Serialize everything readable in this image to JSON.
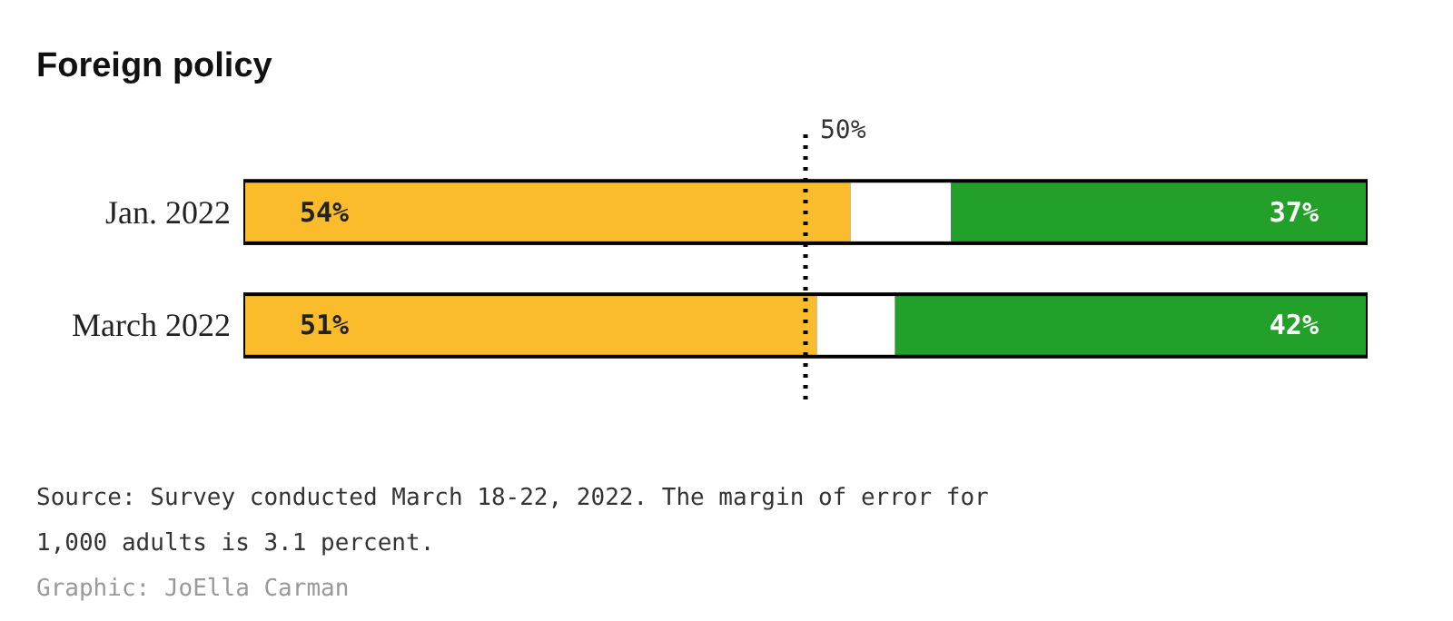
{
  "chart_data": {
    "type": "bar",
    "orientation": "horizontal",
    "stacked": true,
    "title": "Foreign policy",
    "categories": [
      "Jan. 2022",
      "March 2022"
    ],
    "series": [
      {
        "color": "#fbbc2c",
        "values": [
          54,
          51
        ],
        "value_labels": [
          "54%",
          "51%"
        ]
      },
      {
        "color": "#ffffff",
        "values": [
          9,
          7
        ]
      },
      {
        "color": "#22a02a",
        "values": [
          37,
          42
        ],
        "value_labels": [
          "37%",
          "42%"
        ]
      }
    ],
    "xlim": [
      0,
      100
    ],
    "tick_labels": "y",
    "ref_lines": [
      {
        "axis": "x",
        "value": 50,
        "label": "50%",
        "line_style": "dotted",
        "color": "#000000"
      }
    ],
    "annotations": [
      "Source: Survey conducted March 18-22, 2022. The margin of error for 1,000 adults is 3.1 percent.",
      "Graphic: JoElla Carman"
    ]
  }
}
